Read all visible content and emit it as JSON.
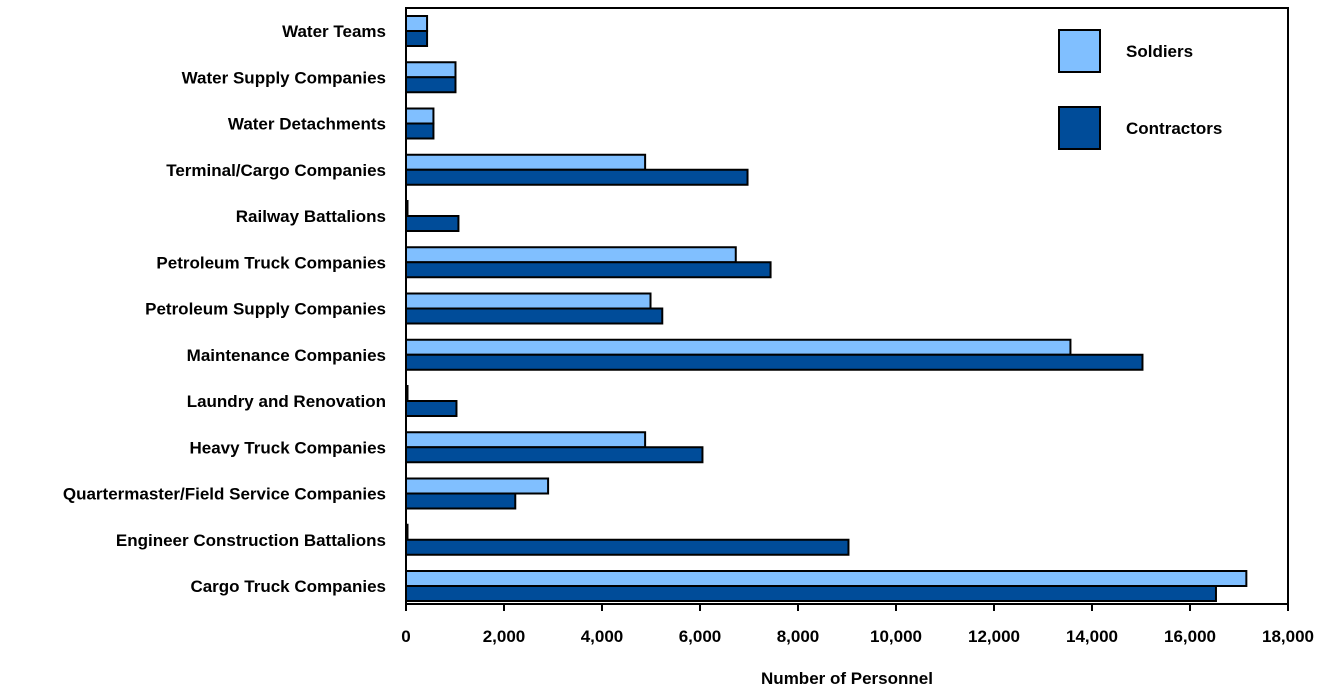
{
  "chart_data": {
    "type": "bar",
    "orientation": "horizontal",
    "title": "",
    "xlabel": "Number of Personnel",
    "ylabel": "",
    "xlim": [
      0,
      18000
    ],
    "x_ticks": [
      0,
      2000,
      4000,
      6000,
      8000,
      10000,
      12000,
      14000,
      16000,
      18000
    ],
    "x_tick_labels": [
      "0",
      "2,000",
      "4,000",
      "6,000",
      "8,000",
      "10,000",
      "12,000",
      "14,000",
      "16,000",
      "18,000"
    ],
    "grid": false,
    "legend_position": "top-right",
    "categories": [
      "Water Teams",
      "Water Supply Companies",
      "Water Detachments",
      "Terminal/Cargo Companies",
      "Railway Battalions",
      "Petroleum Truck Companies",
      "Petroleum Supply Companies",
      "Maintenance Companies",
      "Laundry and Renovation",
      "Heavy Truck Companies",
      "Quartermaster/Field Service Companies",
      "Engineer Construction Battalions",
      "Cargo Truck Companies"
    ],
    "series": [
      {
        "name": "Soldiers",
        "color": "#80bfff",
        "values": [
          430,
          1010,
          560,
          4880,
          30,
          6730,
          4990,
          13560,
          30,
          4880,
          2900,
          30,
          17150
        ]
      },
      {
        "name": "Contractors",
        "color": "#004c99",
        "values": [
          430,
          1010,
          560,
          6970,
          1070,
          7440,
          5230,
          15030,
          1030,
          6050,
          2230,
          9030,
          16530
        ]
      }
    ]
  }
}
